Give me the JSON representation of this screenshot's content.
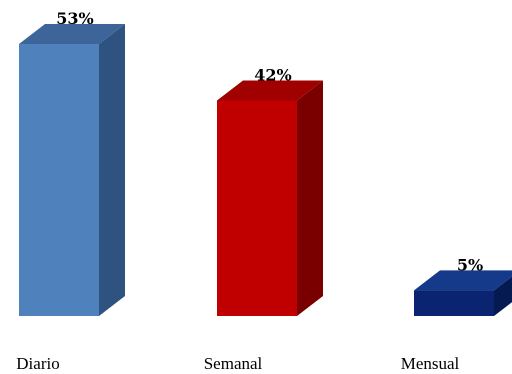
{
  "chart_data": {
    "type": "bar",
    "categories": [
      "Diario",
      "Semanal",
      "Mensual"
    ],
    "values": [
      53,
      42,
      5
    ],
    "value_labels": [
      "53%",
      "42%",
      "5%"
    ],
    "unit": "%",
    "ylim": [
      0,
      60
    ],
    "grid": false,
    "legend": "none",
    "bars_3d": true,
    "colors": [
      {
        "front": "#4f81bd",
        "top": "#3d6599",
        "side": "#2f5380"
      },
      {
        "front": "#c00000",
        "top": "#a00000",
        "side": "#7a0000"
      },
      {
        "front": "#0a2472",
        "top": "#163a8a",
        "side": "#061a52"
      }
    ]
  }
}
